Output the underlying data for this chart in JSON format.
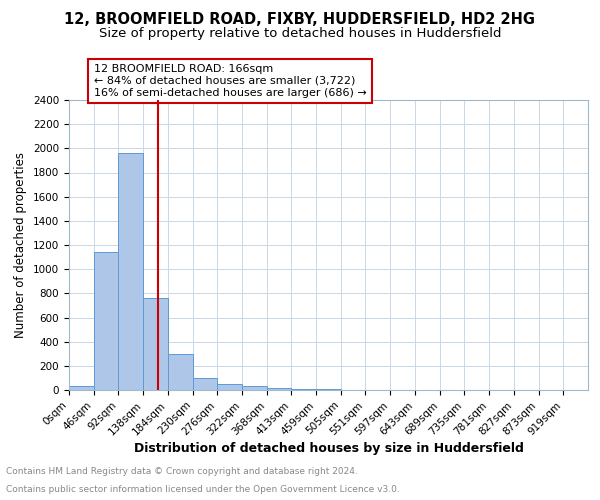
{
  "title": "12, BROOMFIELD ROAD, FIXBY, HUDDERSFIELD, HD2 2HG",
  "subtitle": "Size of property relative to detached houses in Huddersfield",
  "xlabel": "Distribution of detached houses by size in Huddersfield",
  "ylabel": "Number of detached properties",
  "bar_values": [
    30,
    1140,
    1960,
    760,
    295,
    100,
    48,
    30,
    18,
    12,
    5,
    3,
    2,
    1,
    1,
    0,
    0,
    0,
    0,
    0,
    0
  ],
  "bin_edges": [
    0,
    46,
    92,
    138,
    184,
    230,
    276,
    322,
    368,
    413,
    459,
    505,
    551,
    597,
    643,
    689,
    735,
    781,
    827,
    873,
    919,
    965
  ],
  "bar_color": "#aec6e8",
  "bar_edge_color": "#5b9bd5",
  "property_size": 166,
  "annotation_line1": "12 BROOMFIELD ROAD: 166sqm",
  "annotation_line2": "← 84% of detached houses are smaller (3,722)",
  "annotation_line3": "16% of semi-detached houses are larger (686) →",
  "annotation_box_color": "#cc0000",
  "vline_color": "#cc0000",
  "ylim": [
    0,
    2400
  ],
  "yticks": [
    0,
    200,
    400,
    600,
    800,
    1000,
    1200,
    1400,
    1600,
    1800,
    2000,
    2200,
    2400
  ],
  "footer_line1": "Contains HM Land Registry data © Crown copyright and database right 2024.",
  "footer_line2": "Contains public sector information licensed under the Open Government Licence v3.0.",
  "background_color": "#ffffff",
  "grid_color": "#c8d8e8",
  "title_fontsize": 10.5,
  "subtitle_fontsize": 9.5,
  "ylabel_fontsize": 8.5,
  "xlabel_fontsize": 9,
  "annot_fontsize": 8,
  "footer_fontsize": 6.5,
  "tick_fontsize": 7.5
}
